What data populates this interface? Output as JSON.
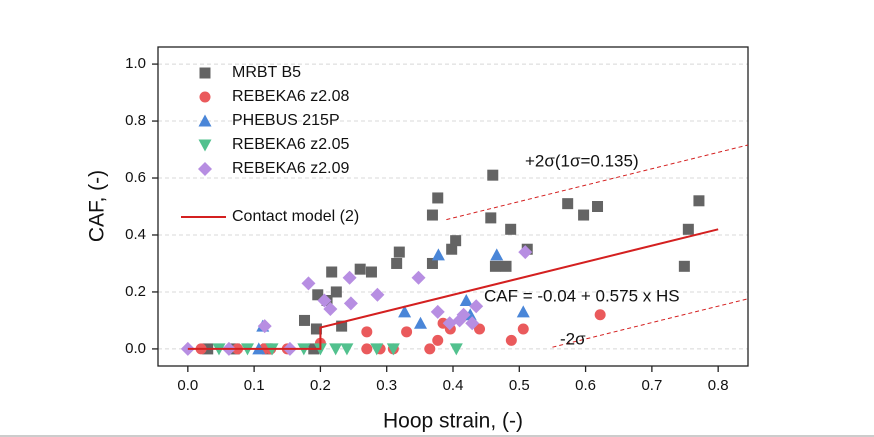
{
  "chart_data": {
    "type": "scatter",
    "x_label": "Hoop strain, (-)",
    "y_label": "CAF, (-)",
    "xlim": [
      -0.045,
      0.845
    ],
    "ylim": [
      -0.06,
      1.06
    ],
    "xticks": [
      {
        "value": 0,
        "label": "0.0"
      },
      0.1,
      0.2,
      0.3,
      0.4,
      0.5,
      0.6,
      0.7,
      0.8
    ],
    "yticks": [
      {
        "value": 0,
        "label": "0.0"
      },
      0.2,
      0.4,
      0.6,
      0.8,
      {
        "value": 1,
        "label": "1.0"
      }
    ],
    "grid": true,
    "legend": "upper left",
    "series": [
      {
        "name": "MRBT B5",
        "color": "#646464",
        "marker": "square",
        "x": [
          0.196,
          0.217,
          0.224,
          0.21,
          0.176,
          0.194,
          0.232,
          0.26,
          0.277,
          0.315,
          0.319,
          0.377,
          0.369,
          0.369,
          0.398,
          0.404,
          0.46,
          0.457,
          0.464,
          0.48,
          0.487,
          0.512,
          0.573,
          0.597,
          0.618,
          0.749,
          0.755,
          0.771,
          0.03,
          0.07,
          0.12,
          0.19
        ],
        "values": [
          0.19,
          0.27,
          0.2,
          0.17,
          0.1,
          0.07,
          0.08,
          0.28,
          0.27,
          0.3,
          0.34,
          0.53,
          0.47,
          0.3,
          0.35,
          0.38,
          0.61,
          0.46,
          0.29,
          0.29,
          0.42,
          0.35,
          0.51,
          0.47,
          0.5,
          0.29,
          0.42,
          0.52,
          0,
          0,
          0,
          0
        ]
      },
      {
        "name": "REBEKA6 z2.08",
        "color": "#ea5a5c",
        "marker": "circle",
        "x": [
          0.02,
          0.075,
          0.115,
          0.15,
          0.2,
          0.27,
          0.27,
          0.29,
          0.31,
          0.33,
          0.365,
          0.377,
          0.385,
          0.396,
          0.44,
          0.488,
          0.506,
          0.622,
          0.125
        ],
        "values": [
          0,
          0,
          0,
          0,
          0.02,
          0.06,
          0,
          0,
          0,
          0.06,
          0,
          0.03,
          0.09,
          0.07,
          0.07,
          0.03,
          0.07,
          0.12,
          0
        ]
      },
      {
        "name": "PHEBUS 215P",
        "color": "#4a86d8",
        "marker": "triangle-up",
        "x": [
          0.113,
          0.327,
          0.378,
          0.42,
          0.426,
          0.466,
          0.506,
          0.107,
          0.351
        ],
        "values": [
          0.08,
          0.13,
          0.33,
          0.17,
          0.12,
          0.33,
          0.13,
          0,
          0.09
        ]
      },
      {
        "name": "REBEKA6 z2.05",
        "color": "#52c18e",
        "marker": "triangle-down",
        "x": [
          0.047,
          0.09,
          0.127,
          0.175,
          0.223,
          0.24,
          0.285,
          0.31,
          0.405,
          0.2
        ],
        "values": [
          0,
          0,
          0,
          0,
          0,
          0,
          0,
          0,
          0,
          0
        ]
      },
      {
        "name": "REBEKA6 z2.09",
        "color": "#b78ee2",
        "marker": "diamond",
        "x": [
          0,
          0.062,
          0.116,
          0.154,
          0.182,
          0.206,
          0.215,
          0.246,
          0.244,
          0.286,
          0.348,
          0.377,
          0.395,
          0.41,
          0.416,
          0.429,
          0.509,
          0.435
        ],
        "values": [
          0,
          0,
          0.08,
          0,
          0.23,
          0.17,
          0.14,
          0.16,
          0.25,
          0.19,
          0.25,
          0.13,
          0.09,
          0.1,
          0.12,
          0.09,
          0.34,
          0.15
        ]
      }
    ],
    "lines": [
      {
        "name": "Contact model (2)",
        "color": "#d42020",
        "style": "solid",
        "x": [
          0,
          0.2,
          0.2,
          0.8
        ],
        "values": [
          0,
          0,
          0.075,
          0.42
        ]
      },
      {
        "color": "#d42020",
        "style": "dashed",
        "x": [
          0.39,
          0.845
        ],
        "values": [
          0.454,
          0.716
        ]
      },
      {
        "color": "#d42020",
        "style": "dashed",
        "x": [
          0.55,
          0.845
        ],
        "values": [
          0.006,
          0.176
        ]
      }
    ],
    "annotations": [
      "+2σ(1σ=0.135)",
      "CAF = -0.04 + 0.575 x HS",
      "-2σ"
    ]
  }
}
